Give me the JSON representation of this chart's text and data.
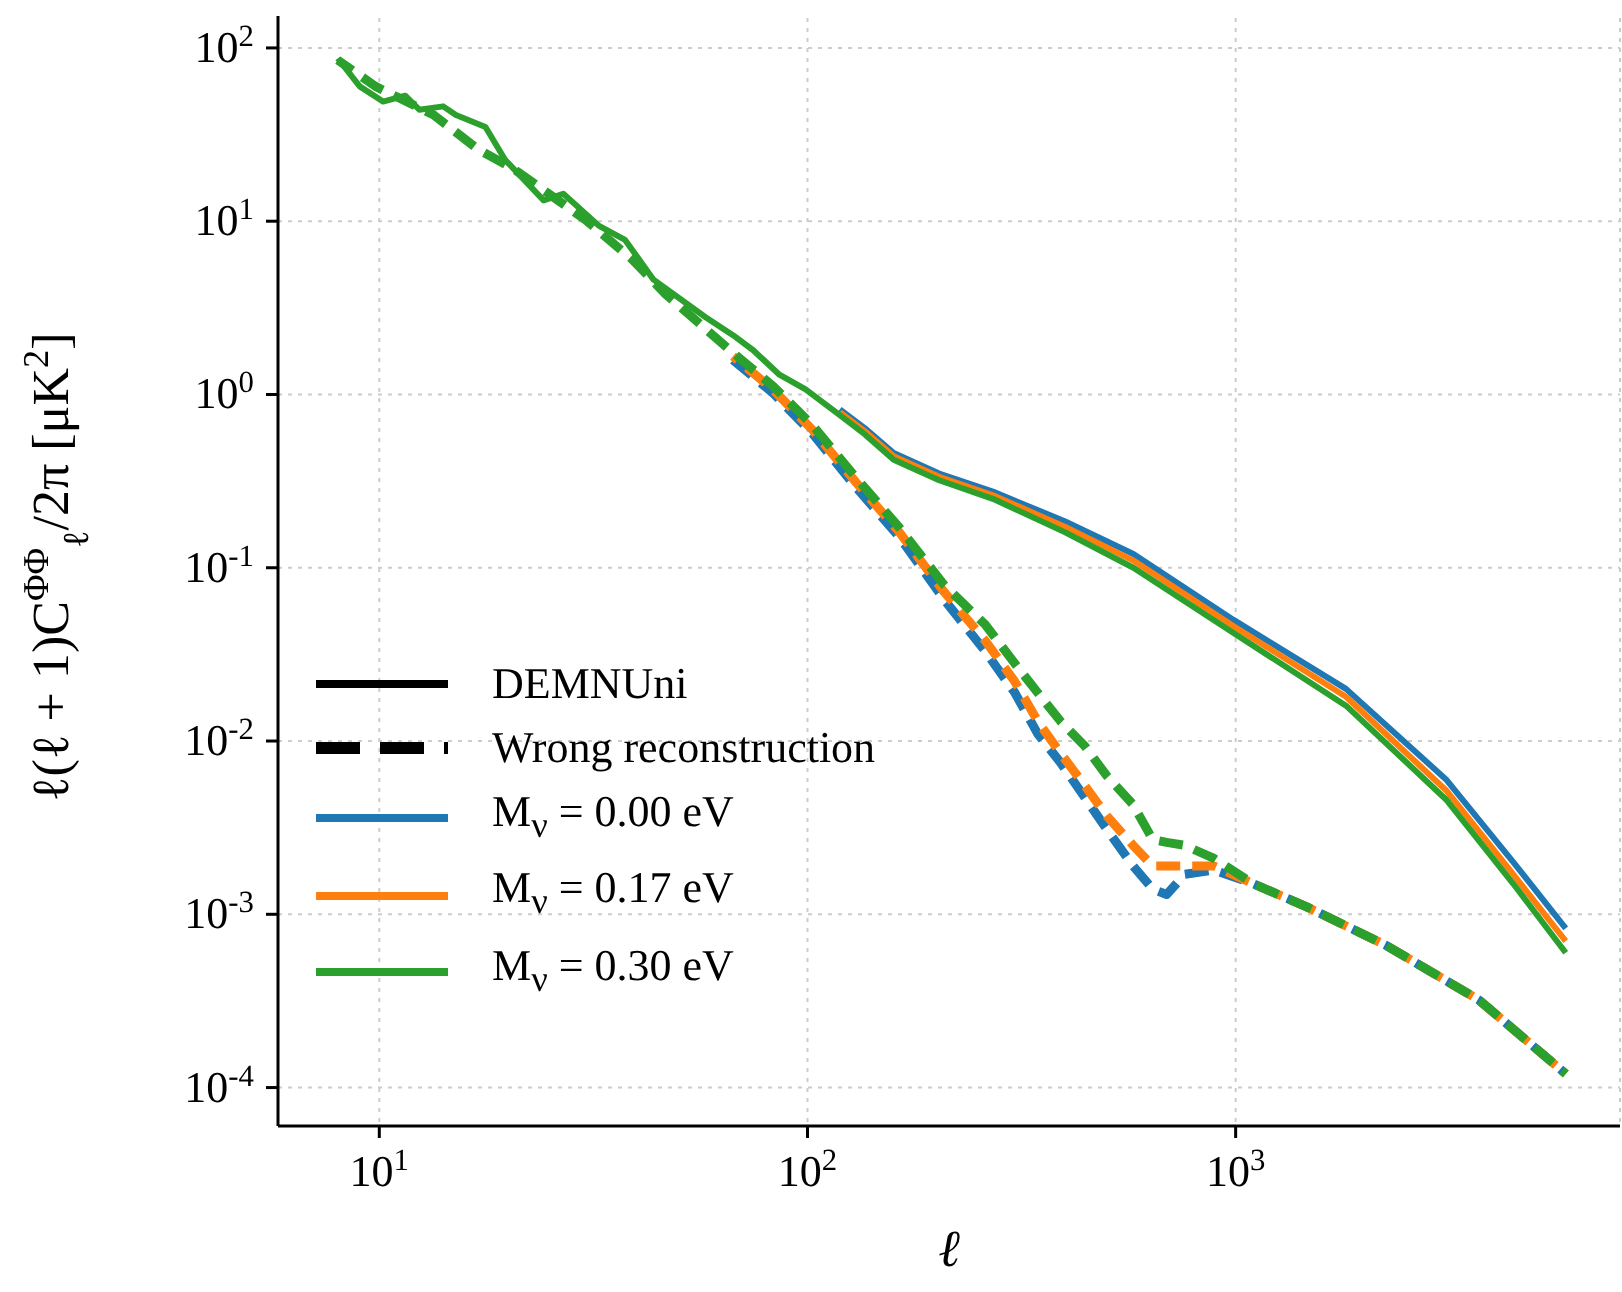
{
  "chart_data": {
    "type": "line",
    "xlabel": "ℓ",
    "ylabel": "ℓ(ℓ + 1)C$^{ΦΦ}$$_{ℓ}$/2π [μK$^{2}$]",
    "log": "xy",
    "grid": true,
    "legend": "bottom left",
    "xlim": [
      5.8,
      7900
    ],
    "xticks": [
      {
        "value": 10,
        "label": "10$^{1}$"
      },
      {
        "value": 100,
        "label": "10$^{2}$"
      },
      {
        "value": 1000,
        "label": "10$^{3}$"
      }
    ],
    "ylim": [
      6e-05,
      170
    ],
    "yticks": [
      {
        "value": 0.0001,
        "label": "10$^{-4}$"
      },
      {
        "value": 0.001,
        "label": "10$^{-3}$"
      },
      {
        "value": 0.01,
        "label": "10$^{-2}$"
      },
      {
        "value": 0.1,
        "label": "10$^{-1}$"
      },
      {
        "value": 1,
        "label": "10$^{0}$"
      },
      {
        "value": 10,
        "label": "10$^{1}$"
      },
      {
        "value": 100,
        "label": "10$^{2}$"
      }
    ],
    "series": [
      {
        "name": "DEMNUni",
        "color": "#000000",
        "line_style": "solid"
      },
      {
        "name": "Wrong reconstruction",
        "color": "#000000",
        "line_style": "dashed"
      },
      {
        "name": "M$_{ν}$ = 0.00 eV",
        "color": "#1f77b4",
        "line_style": "solid",
        "x": [
          119,
          136,
          159,
          203,
          271,
          400,
          577,
          989,
          1810,
          3100,
          4450,
          5900
        ],
        "values": [
          0.82,
          0.64,
          0.46,
          0.35,
          0.275,
          0.185,
          0.12,
          0.05,
          0.02,
          0.006,
          0.002,
          0.00083
        ]
      },
      {
        "name": "M$_{ν}$ = 0.17 eV",
        "color": "#ff7f0e",
        "line_style": "solid",
        "x": [
          119,
          136,
          159,
          203,
          271,
          400,
          577,
          989,
          1810,
          3100,
          4450,
          5900
        ],
        "values": [
          0.79,
          0.615,
          0.44,
          0.335,
          0.262,
          0.172,
          0.11,
          0.046,
          0.018,
          0.0052,
          0.0017,
          0.0007
        ]
      },
      {
        "name": "M$_{ν}$ = 0.30 eV",
        "color": "#2ca02c",
        "line_style": "solid",
        "x": [
          8,
          9,
          10.2,
          11.5,
          12.4,
          14.1,
          15.1,
          17.7,
          19.7,
          24.2,
          26.9,
          32.6,
          37.5,
          43.7,
          57.7,
          67,
          74.7,
          86,
          99,
          119,
          136,
          159,
          203,
          271,
          400,
          577,
          989,
          1810,
          3100,
          4450,
          5900
        ],
        "values": [
          87,
          60,
          49,
          53,
          44,
          46,
          41,
          35,
          22.5,
          13.2,
          14.4,
          9.4,
          7.8,
          4.6,
          2.8,
          2.2,
          1.8,
          1.3,
          1.07,
          0.76,
          0.59,
          0.42,
          0.32,
          0.25,
          0.16,
          0.1,
          0.042,
          0.016,
          0.0046,
          0.0015,
          0.0006
        ]
      },
      {
        "color": "#1f77b4",
        "line_style": "dashed",
        "x": [
          67,
          83,
          103,
          130,
          164,
          209,
          260,
          305,
          345,
          390,
          445,
          500,
          576,
          640,
          690,
          760,
          890,
          1100,
          1470,
          2250,
          3700,
          5900
        ],
        "values": [
          1.58,
          1.02,
          0.59,
          0.29,
          0.15,
          0.065,
          0.033,
          0.019,
          0.011,
          0.0075,
          0.0047,
          0.0031,
          0.0019,
          0.0014,
          0.0013,
          0.0017,
          0.0018,
          0.0015,
          0.0011,
          0.00066,
          0.00032,
          0.00012
        ]
      },
      {
        "color": "#ff7f0e",
        "line_style": "dashed",
        "x": [
          67,
          83,
          103,
          130,
          164,
          209,
          260,
          305,
          345,
          390,
          445,
          500,
          576,
          640,
          690,
          760,
          890,
          1100,
          1470,
          2250,
          3700,
          5900
        ],
        "values": [
          1.66,
          1.07,
          0.62,
          0.31,
          0.16,
          0.072,
          0.038,
          0.022,
          0.013,
          0.0085,
          0.0055,
          0.0037,
          0.0025,
          0.0019,
          0.0019,
          0.0019,
          0.0019,
          0.0015,
          0.0011,
          0.00066,
          0.00032,
          0.00012
        ]
      },
      {
        "color": "#2ca02c",
        "line_style": "dashed",
        "x": [
          8,
          9.8,
          13.4,
          17,
          20.6,
          30.3,
          39,
          46.6,
          67,
          83,
          103,
          130,
          164,
          209,
          260,
          305,
          345,
          390,
          445,
          500,
          576,
          640,
          690,
          760,
          890,
          1100,
          1470,
          2250,
          3700,
          5900
        ],
        "values": [
          85,
          60,
          41,
          26,
          20,
          10.2,
          6,
          3.8,
          1.74,
          1.12,
          0.66,
          0.33,
          0.17,
          0.079,
          0.047,
          0.028,
          0.019,
          0.013,
          0.0093,
          0.0063,
          0.0043,
          0.0027,
          0.0026,
          0.0025,
          0.0021,
          0.0015,
          0.0011,
          0.00066,
          0.00032,
          0.00012
        ]
      }
    ]
  }
}
